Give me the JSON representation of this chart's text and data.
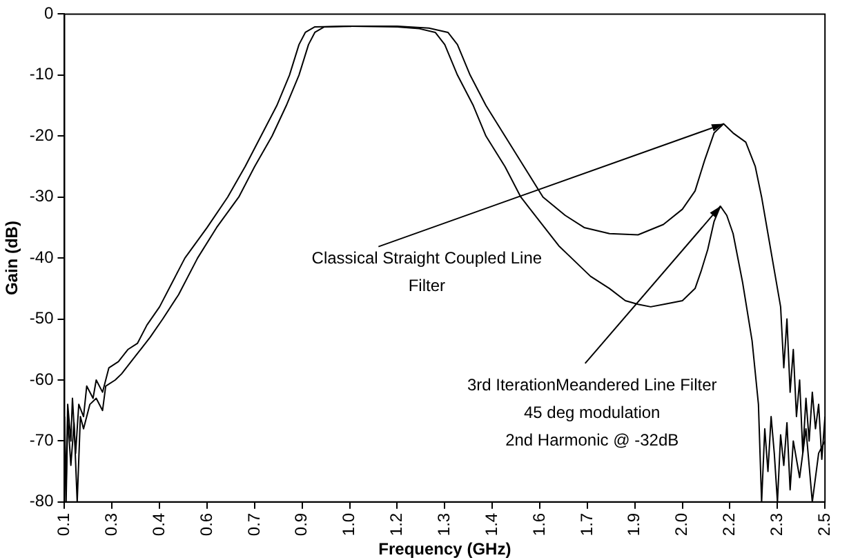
{
  "chart_data": {
    "type": "line",
    "xlabel": "Frequency (GHz)",
    "ylabel": "Gain (dB)",
    "xlim": [
      0.1,
      2.5
    ],
    "ylim": [
      -80,
      0
    ],
    "xticks": [
      0.1,
      {
        "value": 0.25,
        "label": "0.3"
      },
      0.4,
      {
        "value": 0.55,
        "label": "0.6"
      },
      0.7,
      {
        "value": 0.85,
        "label": "0.9"
      },
      {
        "value": 1.0,
        "label": "1.0"
      },
      {
        "value": 1.15,
        "label": "1.2"
      },
      1.3,
      {
        "value": 1.45,
        "label": "1.4"
      },
      1.6,
      {
        "value": 1.75,
        "label": "1.7"
      },
      1.9,
      {
        "value": 2.05,
        "label": "2.0"
      },
      2.2,
      {
        "value": 2.35,
        "label": "2.3"
      },
      2.5
    ],
    "yticks": [
      0,
      -10,
      -20,
      -30,
      -40,
      -50,
      -60,
      -70,
      -80
    ],
    "grid": false,
    "legend": false,
    "series": [
      {
        "color": "#000000",
        "x": [
          0.1,
          0.105,
          0.11,
          0.12,
          0.125,
          0.135,
          0.145,
          0.16,
          0.17,
          0.19,
          0.2,
          0.22,
          0.24,
          0.27,
          0.3,
          0.33,
          0.36,
          0.4,
          0.44,
          0.48,
          0.55,
          0.615,
          0.67,
          0.72,
          0.77,
          0.81,
          0.84,
          0.86,
          0.89,
          1.0,
          1.15,
          1.25,
          1.31,
          1.34,
          1.38,
          1.43,
          1.49,
          1.55,
          1.61,
          1.68,
          1.74,
          1.82,
          1.91,
          1.99,
          2.05,
          2.09,
          2.12,
          2.15,
          2.18,
          2.21,
          2.25,
          2.28,
          2.3,
          2.32,
          2.34,
          2.36,
          2.37,
          2.38,
          2.39,
          2.4,
          2.41,
          2.42,
          2.43,
          2.44,
          2.45,
          2.46,
          2.47,
          2.48,
          2.49,
          2.5
        ],
        "values": [
          -66,
          -78,
          -64,
          -70,
          -63,
          -72,
          -64,
          -66,
          -61,
          -63,
          -60,
          -62,
          -58,
          -57,
          -55,
          -54,
          -51,
          -48,
          -44,
          -40,
          -35,
          -30,
          -25,
          -20,
          -15,
          -10,
          -5,
          -3,
          -2.1,
          -2,
          -2,
          -2.3,
          -3,
          -5,
          -10,
          -15,
          -20,
          -25,
          -30,
          -33,
          -35,
          -36,
          -36.2,
          -34.5,
          -32,
          -29,
          -24,
          -19.5,
          -18,
          -19.5,
          -21,
          -25,
          -30,
          -36,
          -42,
          -48,
          -58,
          -50,
          -62,
          -55,
          -66,
          -60,
          -72,
          -63,
          -70,
          -62,
          -68,
          -64,
          -73,
          -66
        ]
      },
      {
        "color": "#000000",
        "x": [
          0.1,
          0.105,
          0.11,
          0.12,
          0.13,
          0.14,
          0.15,
          0.16,
          0.18,
          0.2,
          0.22,
          0.23,
          0.26,
          0.28,
          0.31,
          0.34,
          0.37,
          0.41,
          0.46,
          0.52,
          0.58,
          0.65,
          0.7,
          0.755,
          0.8,
          0.84,
          0.87,
          0.89,
          0.92,
          1.0,
          1.15,
          1.22,
          1.27,
          1.3,
          1.34,
          1.39,
          1.43,
          1.49,
          1.54,
          1.6,
          1.66,
          1.7,
          1.76,
          1.82,
          1.87,
          1.91,
          1.95,
          2.0,
          2.05,
          2.09,
          2.11,
          2.13,
          2.15,
          2.17,
          2.19,
          2.21,
          2.24,
          2.27,
          2.29,
          2.3,
          2.31,
          2.32,
          2.33,
          2.34,
          2.35,
          2.36,
          2.37,
          2.38,
          2.39,
          2.4,
          2.42,
          2.44,
          2.46,
          2.48,
          2.5
        ],
        "values": [
          -70,
          -80,
          -66,
          -74,
          -67,
          -80,
          -66,
          -68,
          -64,
          -63,
          -65,
          -61,
          -60,
          -59,
          -57,
          -55,
          -53,
          -50,
          -46,
          -40,
          -35,
          -30,
          -25,
          -20,
          -15,
          -10,
          -5,
          -3,
          -2.1,
          -2,
          -2.1,
          -2.4,
          -3,
          -5,
          -10,
          -15,
          -20,
          -25,
          -30,
          -34,
          -38,
          -40,
          -43,
          -45,
          -47,
          -47.6,
          -48,
          -47.5,
          -47,
          -45,
          -42,
          -38.6,
          -34,
          -31.5,
          -33,
          -36,
          -44,
          -53.6,
          -64,
          -80,
          -68,
          -75,
          -66,
          -72,
          -80,
          -69,
          -74,
          -67,
          -78,
          -70,
          -76,
          -68,
          -80,
          -72,
          -70
        ]
      }
    ],
    "annotations": [
      {
        "text": "Classical Straight Coupled Line\nFilter",
        "x": 2.18,
        "y": -18
      },
      {
        "text": "3rd IterationMeandered Line Filter\n45 deg modulation\n2nd Harmonic @ -32dB",
        "x": 2.17,
        "y": -31.5
      }
    ]
  }
}
